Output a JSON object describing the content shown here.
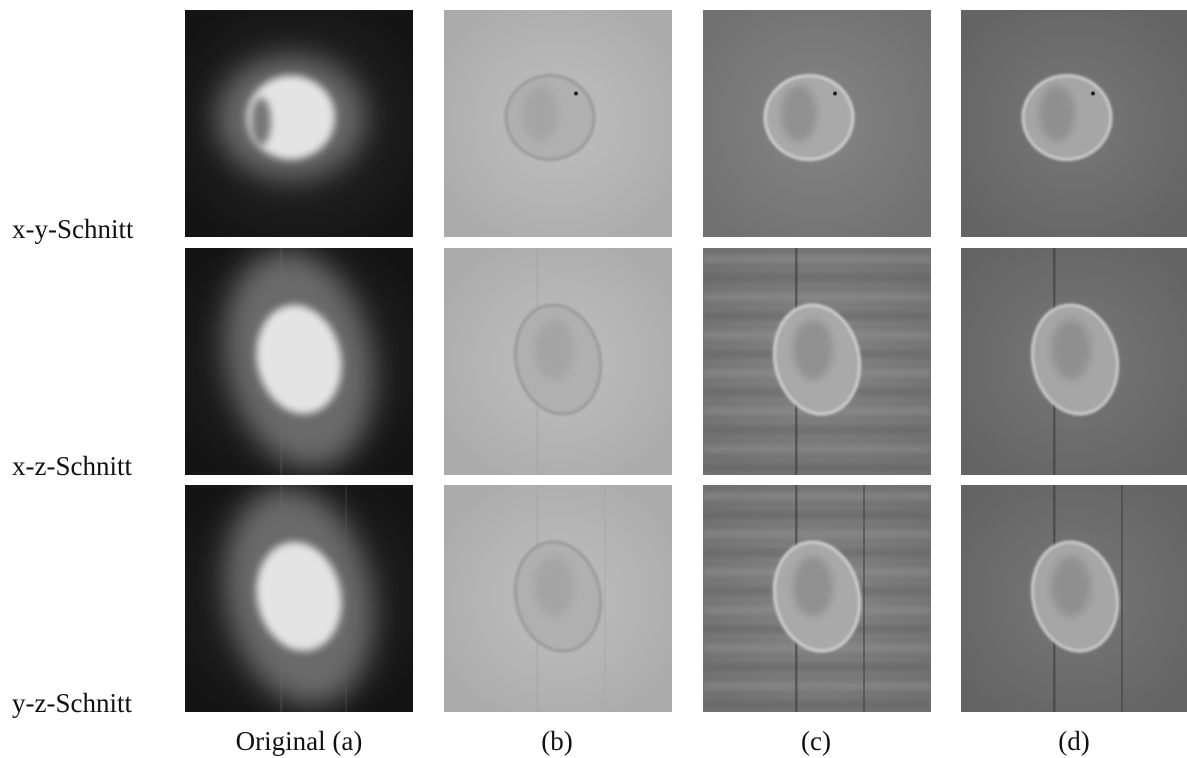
{
  "figure": {
    "row_labels": [
      "x-y-Schnitt",
      "x-z-Schnitt",
      "y-z-Schnitt"
    ],
    "column_labels": [
      "Original (a)",
      "(b)",
      "(c)",
      "(d)"
    ]
  }
}
